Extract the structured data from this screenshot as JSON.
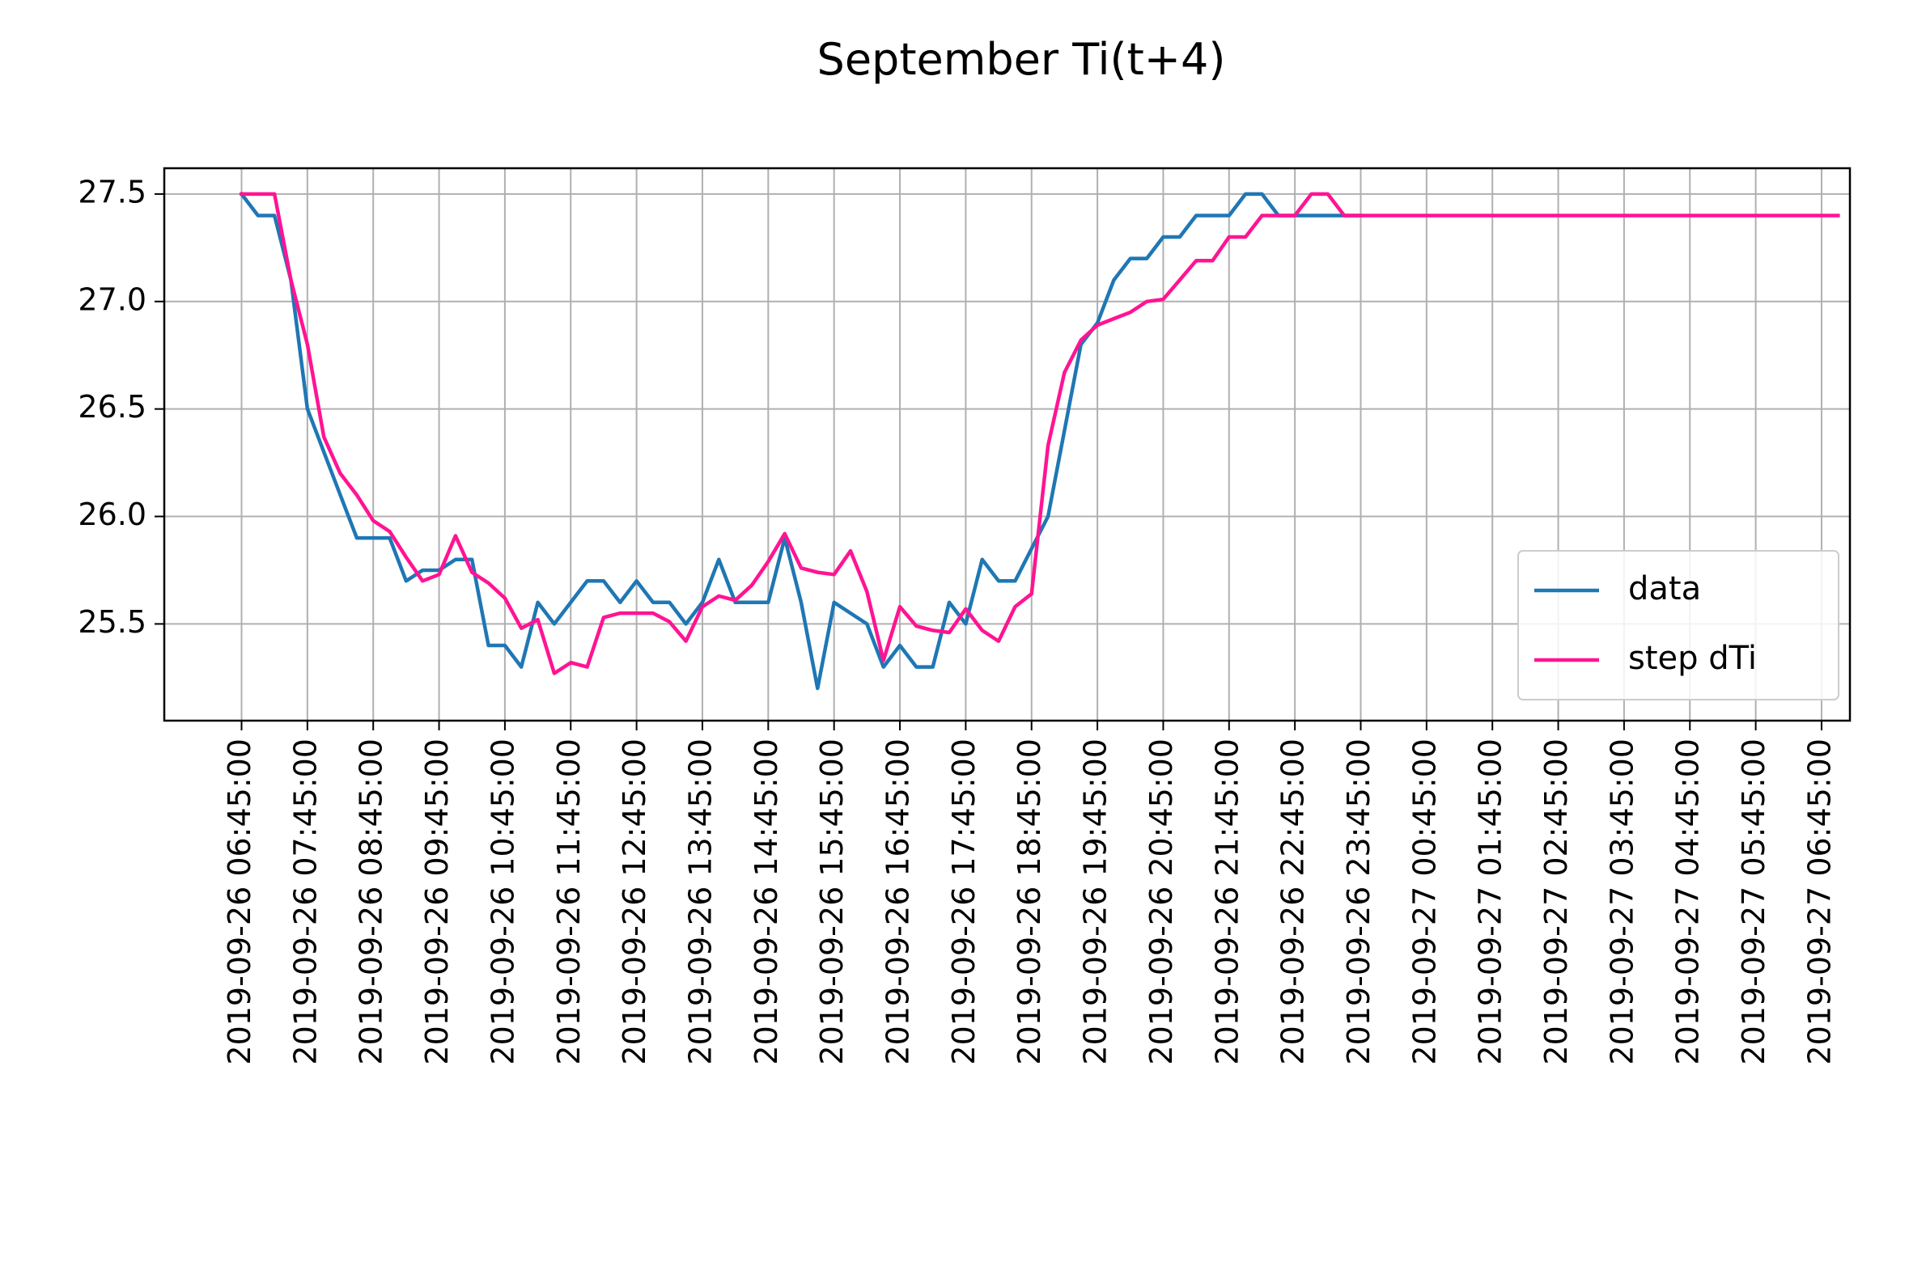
{
  "chart_data": {
    "type": "line",
    "title": "September Ti(t+4)",
    "xlabel": "",
    "ylabel": "",
    "ylim": [
      25.05,
      27.62
    ],
    "yticks": [
      25.5,
      26.0,
      26.5,
      27.0,
      27.5
    ],
    "ytick_labels": [
      "25.5",
      "26.0",
      "26.5",
      "27.0",
      "27.5"
    ],
    "xtick_labels": [
      "2019-09-26 06:45:00",
      "2019-09-26 07:45:00",
      "2019-09-26 08:45:00",
      "2019-09-26 09:45:00",
      "2019-09-26 10:45:00",
      "2019-09-26 11:45:00",
      "2019-09-26 12:45:00",
      "2019-09-26 13:45:00",
      "2019-09-26 14:45:00",
      "2019-09-26 15:45:00",
      "2019-09-26 16:45:00",
      "2019-09-26 17:45:00",
      "2019-09-26 18:45:00",
      "2019-09-26 19:45:00",
      "2019-09-26 20:45:00",
      "2019-09-26 21:45:00",
      "2019-09-26 22:45:00",
      "2019-09-26 23:45:00",
      "2019-09-27 00:45:00",
      "2019-09-27 01:45:00",
      "2019-09-27 02:45:00",
      "2019-09-27 03:45:00",
      "2019-09-27 04:45:00",
      "2019-09-27 05:45:00",
      "2019-09-27 06:45:00"
    ],
    "x_start": "2019-09-26 06:45:00",
    "x_interval": "15 min",
    "grid": true,
    "legend_position": "lower-right",
    "series": [
      {
        "name": "data",
        "color": "#1f77b4",
        "values": [
          27.5,
          27.4,
          27.4,
          27.1,
          26.5,
          26.3,
          26.1,
          25.9,
          25.9,
          25.9,
          25.7,
          25.75,
          25.75,
          25.8,
          25.8,
          25.4,
          25.4,
          25.3,
          25.6,
          25.5,
          25.6,
          25.7,
          25.7,
          25.6,
          25.7,
          25.6,
          25.6,
          25.5,
          25.6,
          25.8,
          25.6,
          25.6,
          25.6,
          25.9,
          25.6,
          25.2,
          25.6,
          25.55,
          25.5,
          25.3,
          25.4,
          25.3,
          25.3,
          25.6,
          25.5,
          25.8,
          25.7,
          25.7,
          25.85,
          26.0,
          26.4,
          26.8,
          26.9,
          27.1,
          27.2,
          27.2,
          27.3,
          27.3,
          27.4,
          27.4,
          27.4,
          27.5,
          27.5,
          27.4,
          27.4,
          27.4,
          27.4,
          27.4,
          27.4
        ]
      },
      {
        "name": "step dTi",
        "color": "#ff1493",
        "values": [
          27.5,
          27.5,
          27.5,
          27.1,
          26.8,
          26.37,
          26.2,
          26.1,
          25.98,
          25.93,
          25.81,
          25.7,
          25.73,
          25.91,
          25.74,
          25.69,
          25.62,
          25.48,
          25.52,
          25.27,
          25.32,
          25.3,
          25.53,
          25.55,
          25.55,
          25.55,
          25.51,
          25.42,
          25.58,
          25.63,
          25.61,
          25.68,
          25.79,
          25.92,
          25.76,
          25.74,
          25.73,
          25.84,
          25.65,
          25.33,
          25.58,
          25.49,
          25.47,
          25.46,
          25.57,
          25.47,
          25.42,
          25.58,
          25.64,
          26.33,
          26.67,
          26.82,
          26.89,
          26.92,
          26.95,
          27.0,
          27.01,
          27.1,
          27.19,
          27.19,
          27.3,
          27.3,
          27.4,
          27.4,
          27.4,
          27.5,
          27.5,
          27.4,
          27.4,
          27.4,
          27.4,
          27.4,
          27.4,
          27.4,
          27.4,
          27.4,
          27.4,
          27.4,
          27.4,
          27.4,
          27.4,
          27.4,
          27.4,
          27.4,
          27.4,
          27.4,
          27.4,
          27.4,
          27.4,
          27.4,
          27.4,
          27.4,
          27.4,
          27.4,
          27.4,
          27.4,
          27.4,
          27.4
        ]
      }
    ]
  }
}
